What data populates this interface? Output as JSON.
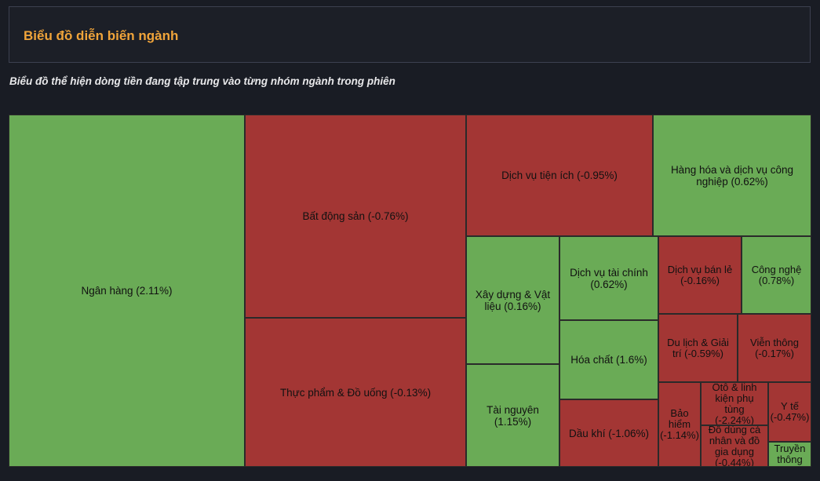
{
  "header": {
    "title": "Biểu đồ diễn biến ngành"
  },
  "subtitle": "Biểu đồ thể hiện dòng tiền đang tập trung vào từng nhóm ngành trong phiên",
  "colors": {
    "up": "#6aab56",
    "down": "#a33634",
    "title": "#f0a43a"
  },
  "chart_data": {
    "type": "treemap",
    "items": [
      {
        "label": "Ngân hàng (2.11%)",
        "name": "Ngân hàng",
        "change": 2.11
      },
      {
        "label": "Bất động sản (-0.76%)",
        "name": "Bất động sản",
        "change": -0.76
      },
      {
        "label": "Thực phẩm & Đồ uống (-0.13%)",
        "name": "Thực phẩm & Đồ uống",
        "change": -0.13
      },
      {
        "label": "Dịch vụ tiện ích (-0.95%)",
        "name": "Dịch vụ tiện ích",
        "change": -0.95
      },
      {
        "label": "Hàng hóa và dịch vụ công nghiệp (0.62%)",
        "name": "Hàng hóa và dịch vụ công nghiệp",
        "change": 0.62
      },
      {
        "label": "Xây dựng & Vật liệu (0.16%)",
        "name": "Xây dựng & Vật liệu",
        "change": 0.16
      },
      {
        "label": "Tài nguyên (1.15%)",
        "name": "Tài nguyên",
        "change": 1.15
      },
      {
        "label": "Dịch vụ tài chính (0.62%)",
        "name": "Dịch vụ tài chính",
        "change": 0.62
      },
      {
        "label": "Hóa chất (1.6%)",
        "name": "Hóa chất",
        "change": 1.6
      },
      {
        "label": "Dầu khí (-1.06%)",
        "name": "Dầu khí",
        "change": -1.06
      },
      {
        "label": "Dịch vụ bán lẻ (-0.16%)",
        "name": "Dịch vụ bán lẻ",
        "change": -0.16
      },
      {
        "label": "Công nghệ (0.78%)",
        "name": "Công nghệ",
        "change": 0.78
      },
      {
        "label": "Du lịch & Giải trí (-0.59%)",
        "name": "Du lịch & Giải trí",
        "change": -0.59
      },
      {
        "label": "Viễn thông (-0.17%)",
        "name": "Viễn thông",
        "change": -0.17
      },
      {
        "label": "Bảo hiểm (-1.14%)",
        "name": "Bảo hiểm",
        "change": -1.14
      },
      {
        "label": "Ôtô & linh kiện phụ tùng (-2.24%)",
        "name": "Ôtô & linh kiện phụ tùng",
        "change": -2.24
      },
      {
        "label": "Y tế (-0.47%)",
        "name": "Y tế",
        "change": -0.47
      },
      {
        "label": "Đồ dùng cá nhân và đồ gia dụng (-0.44%)",
        "name": "Đồ dùng cá nhân và đồ gia dụng",
        "change": -0.44
      },
      {
        "label": "Truyền thông",
        "name": "Truyền thông",
        "change": null
      }
    ]
  }
}
